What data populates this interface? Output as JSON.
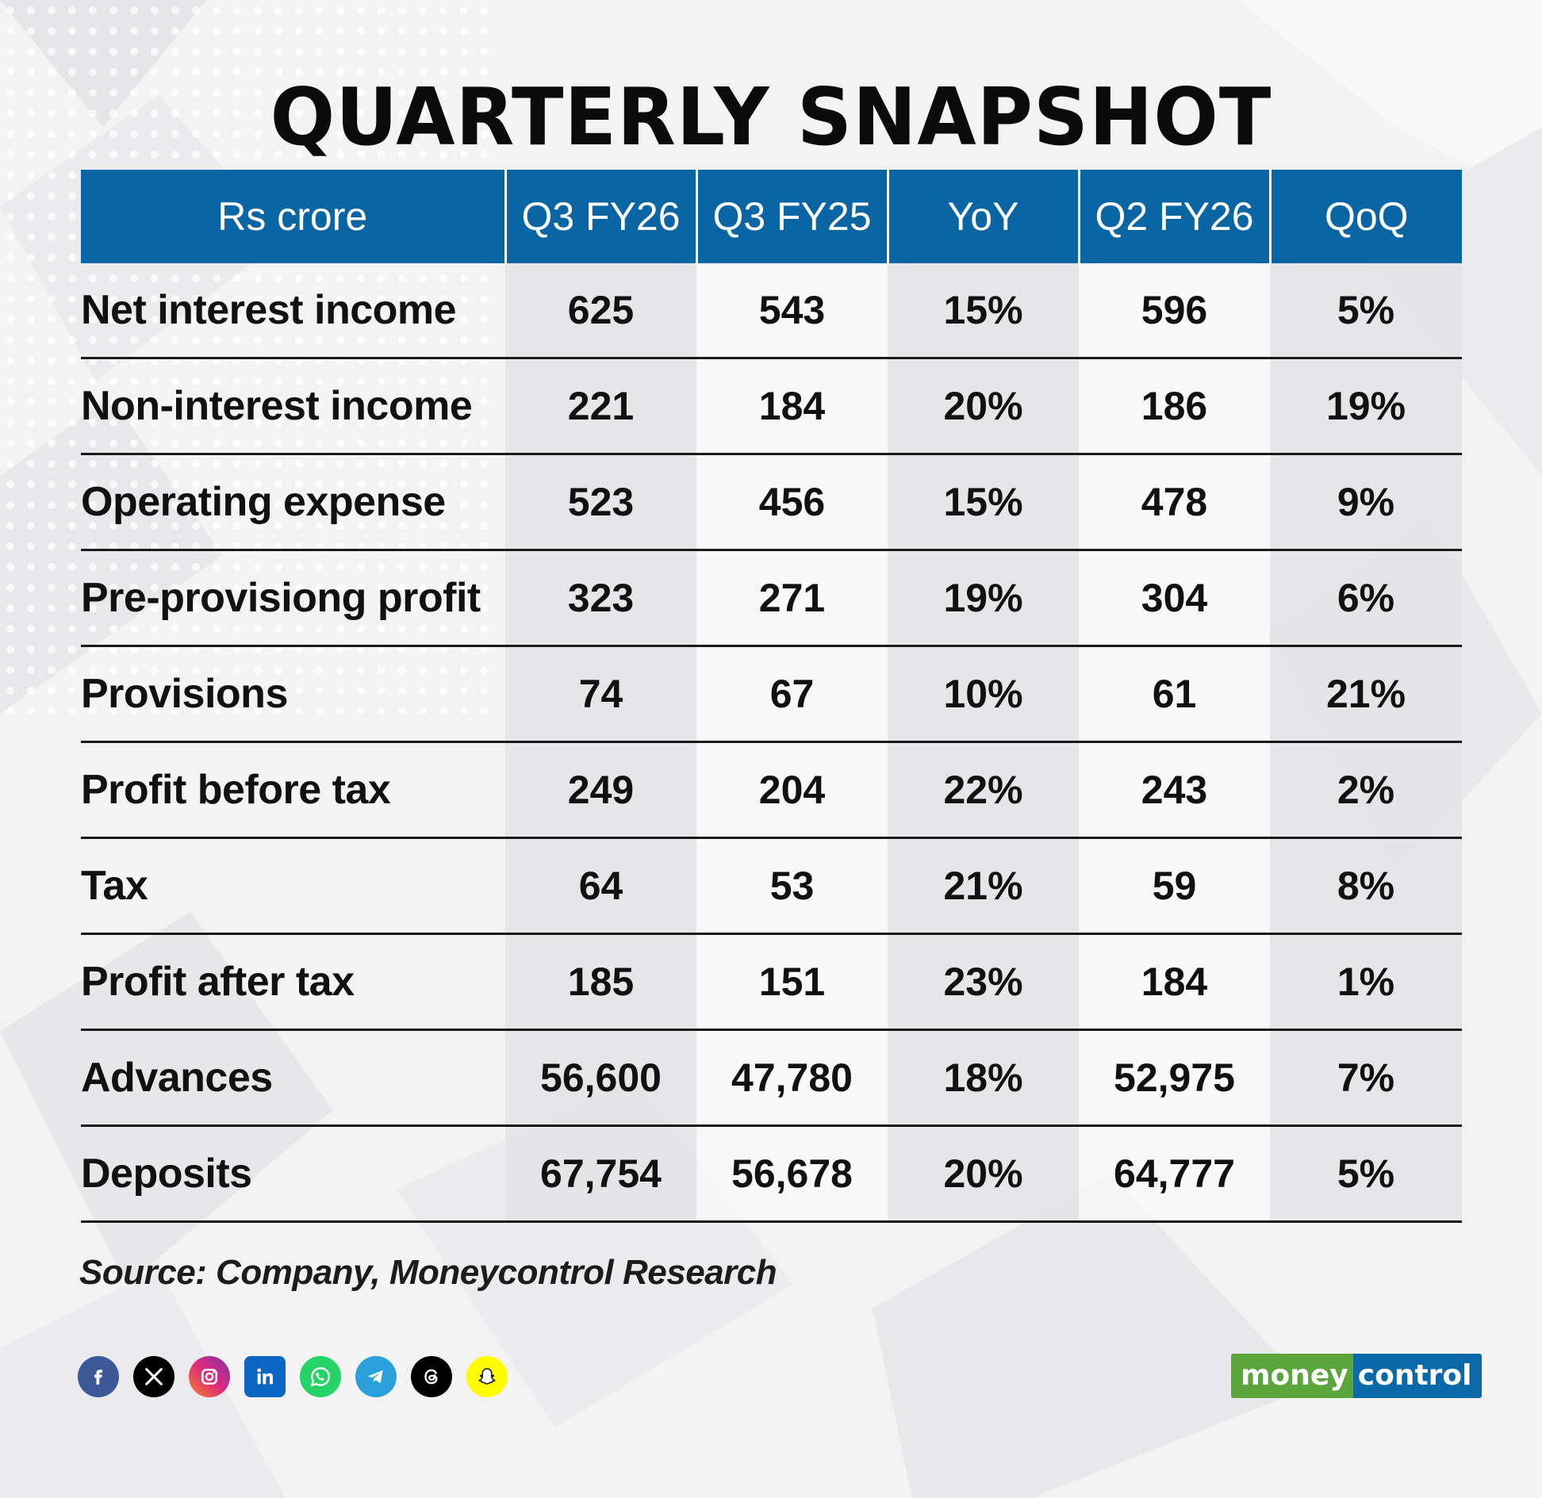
{
  "title": "QUARTERLY SNAPSHOT",
  "table": {
    "headers": [
      "Rs crore",
      "Q3 FY26",
      "Q3 FY25",
      "YoY",
      "Q2 FY26",
      "QoQ"
    ],
    "rows": [
      {
        "label": "Net interest income",
        "values": [
          "625",
          "543",
          "15%",
          "596",
          "5%"
        ]
      },
      {
        "label": "Non-interest income",
        "values": [
          "221",
          "184",
          "20%",
          "186",
          "19%"
        ]
      },
      {
        "label": "Operating expense",
        "values": [
          "523",
          "456",
          "15%",
          "478",
          "9%"
        ]
      },
      {
        "label": "Pre-provisiong profit",
        "values": [
          "323",
          "271",
          "19%",
          "304",
          "6%"
        ]
      },
      {
        "label": "Provisions",
        "values": [
          "74",
          "67",
          "10%",
          "61",
          "21%"
        ]
      },
      {
        "label": "Profit before tax",
        "values": [
          "249",
          "204",
          "22%",
          "243",
          "2%"
        ]
      },
      {
        "label": "Tax",
        "values": [
          "64",
          "53",
          "21%",
          "59",
          "8%"
        ]
      },
      {
        "label": "Profit after tax",
        "values": [
          "185",
          "151",
          "23%",
          "184",
          "1%"
        ]
      },
      {
        "label": "Advances",
        "values": [
          "56,600",
          "47,780",
          "18%",
          "52,975",
          "7%"
        ]
      },
      {
        "label": "Deposits",
        "values": [
          "67,754",
          "56,678",
          "20%",
          "64,777",
          "5%"
        ]
      }
    ]
  },
  "source": "Source: Company, Moneycontrol Research",
  "social_icons": [
    {
      "name": "facebook-icon",
      "color": "#3b5998"
    },
    {
      "name": "x-icon",
      "color": "#000000"
    },
    {
      "name": "instagram-icon",
      "color": "#d6249f"
    },
    {
      "name": "linkedin-icon",
      "color": "#0a66c2"
    },
    {
      "name": "whatsapp-icon",
      "color": "#25d366"
    },
    {
      "name": "telegram-icon",
      "color": "#2aa1da"
    },
    {
      "name": "threads-icon",
      "color": "#000000"
    },
    {
      "name": "snapchat-icon",
      "color": "#fffc00"
    }
  ],
  "logo": {
    "part1": "money",
    "part2": "control",
    "colors": {
      "money": "#5aa63d",
      "control": "#0a6aa9"
    }
  },
  "colors": {
    "header_bg": "#0965a4",
    "header_text": "#ffffff",
    "shaded_cell": "#e4e4e6",
    "rule": "#1a1a1a"
  }
}
